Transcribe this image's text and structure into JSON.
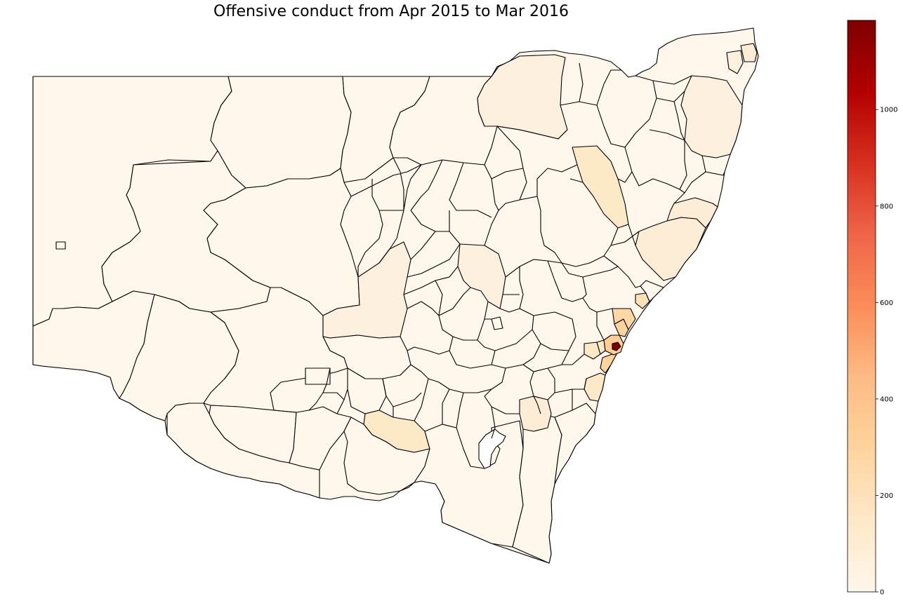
{
  "title": "Offensive conduct from Apr 2015 to Mar 2016",
  "colorbar": {
    "ticks": [
      {
        "value": 0,
        "label": "0"
      },
      {
        "value": 200,
        "label": "200"
      },
      {
        "value": 400,
        "label": "400"
      },
      {
        "value": 600,
        "label": "600"
      },
      {
        "value": 800,
        "label": "800"
      },
      {
        "value": 1000,
        "label": "1000"
      }
    ],
    "range": [
      0,
      1185
    ],
    "colormap": "OrRd",
    "stops": [
      "#fff7ec",
      "#fee8c8",
      "#fdd49e",
      "#fdbb84",
      "#fc8d59",
      "#ef6548",
      "#d7301f",
      "#b30000",
      "#7f0000"
    ]
  },
  "map": {
    "region": "New South Wales Local Government Areas",
    "background_fill": "#fff7ec",
    "boundary_color": "#000000"
  }
}
